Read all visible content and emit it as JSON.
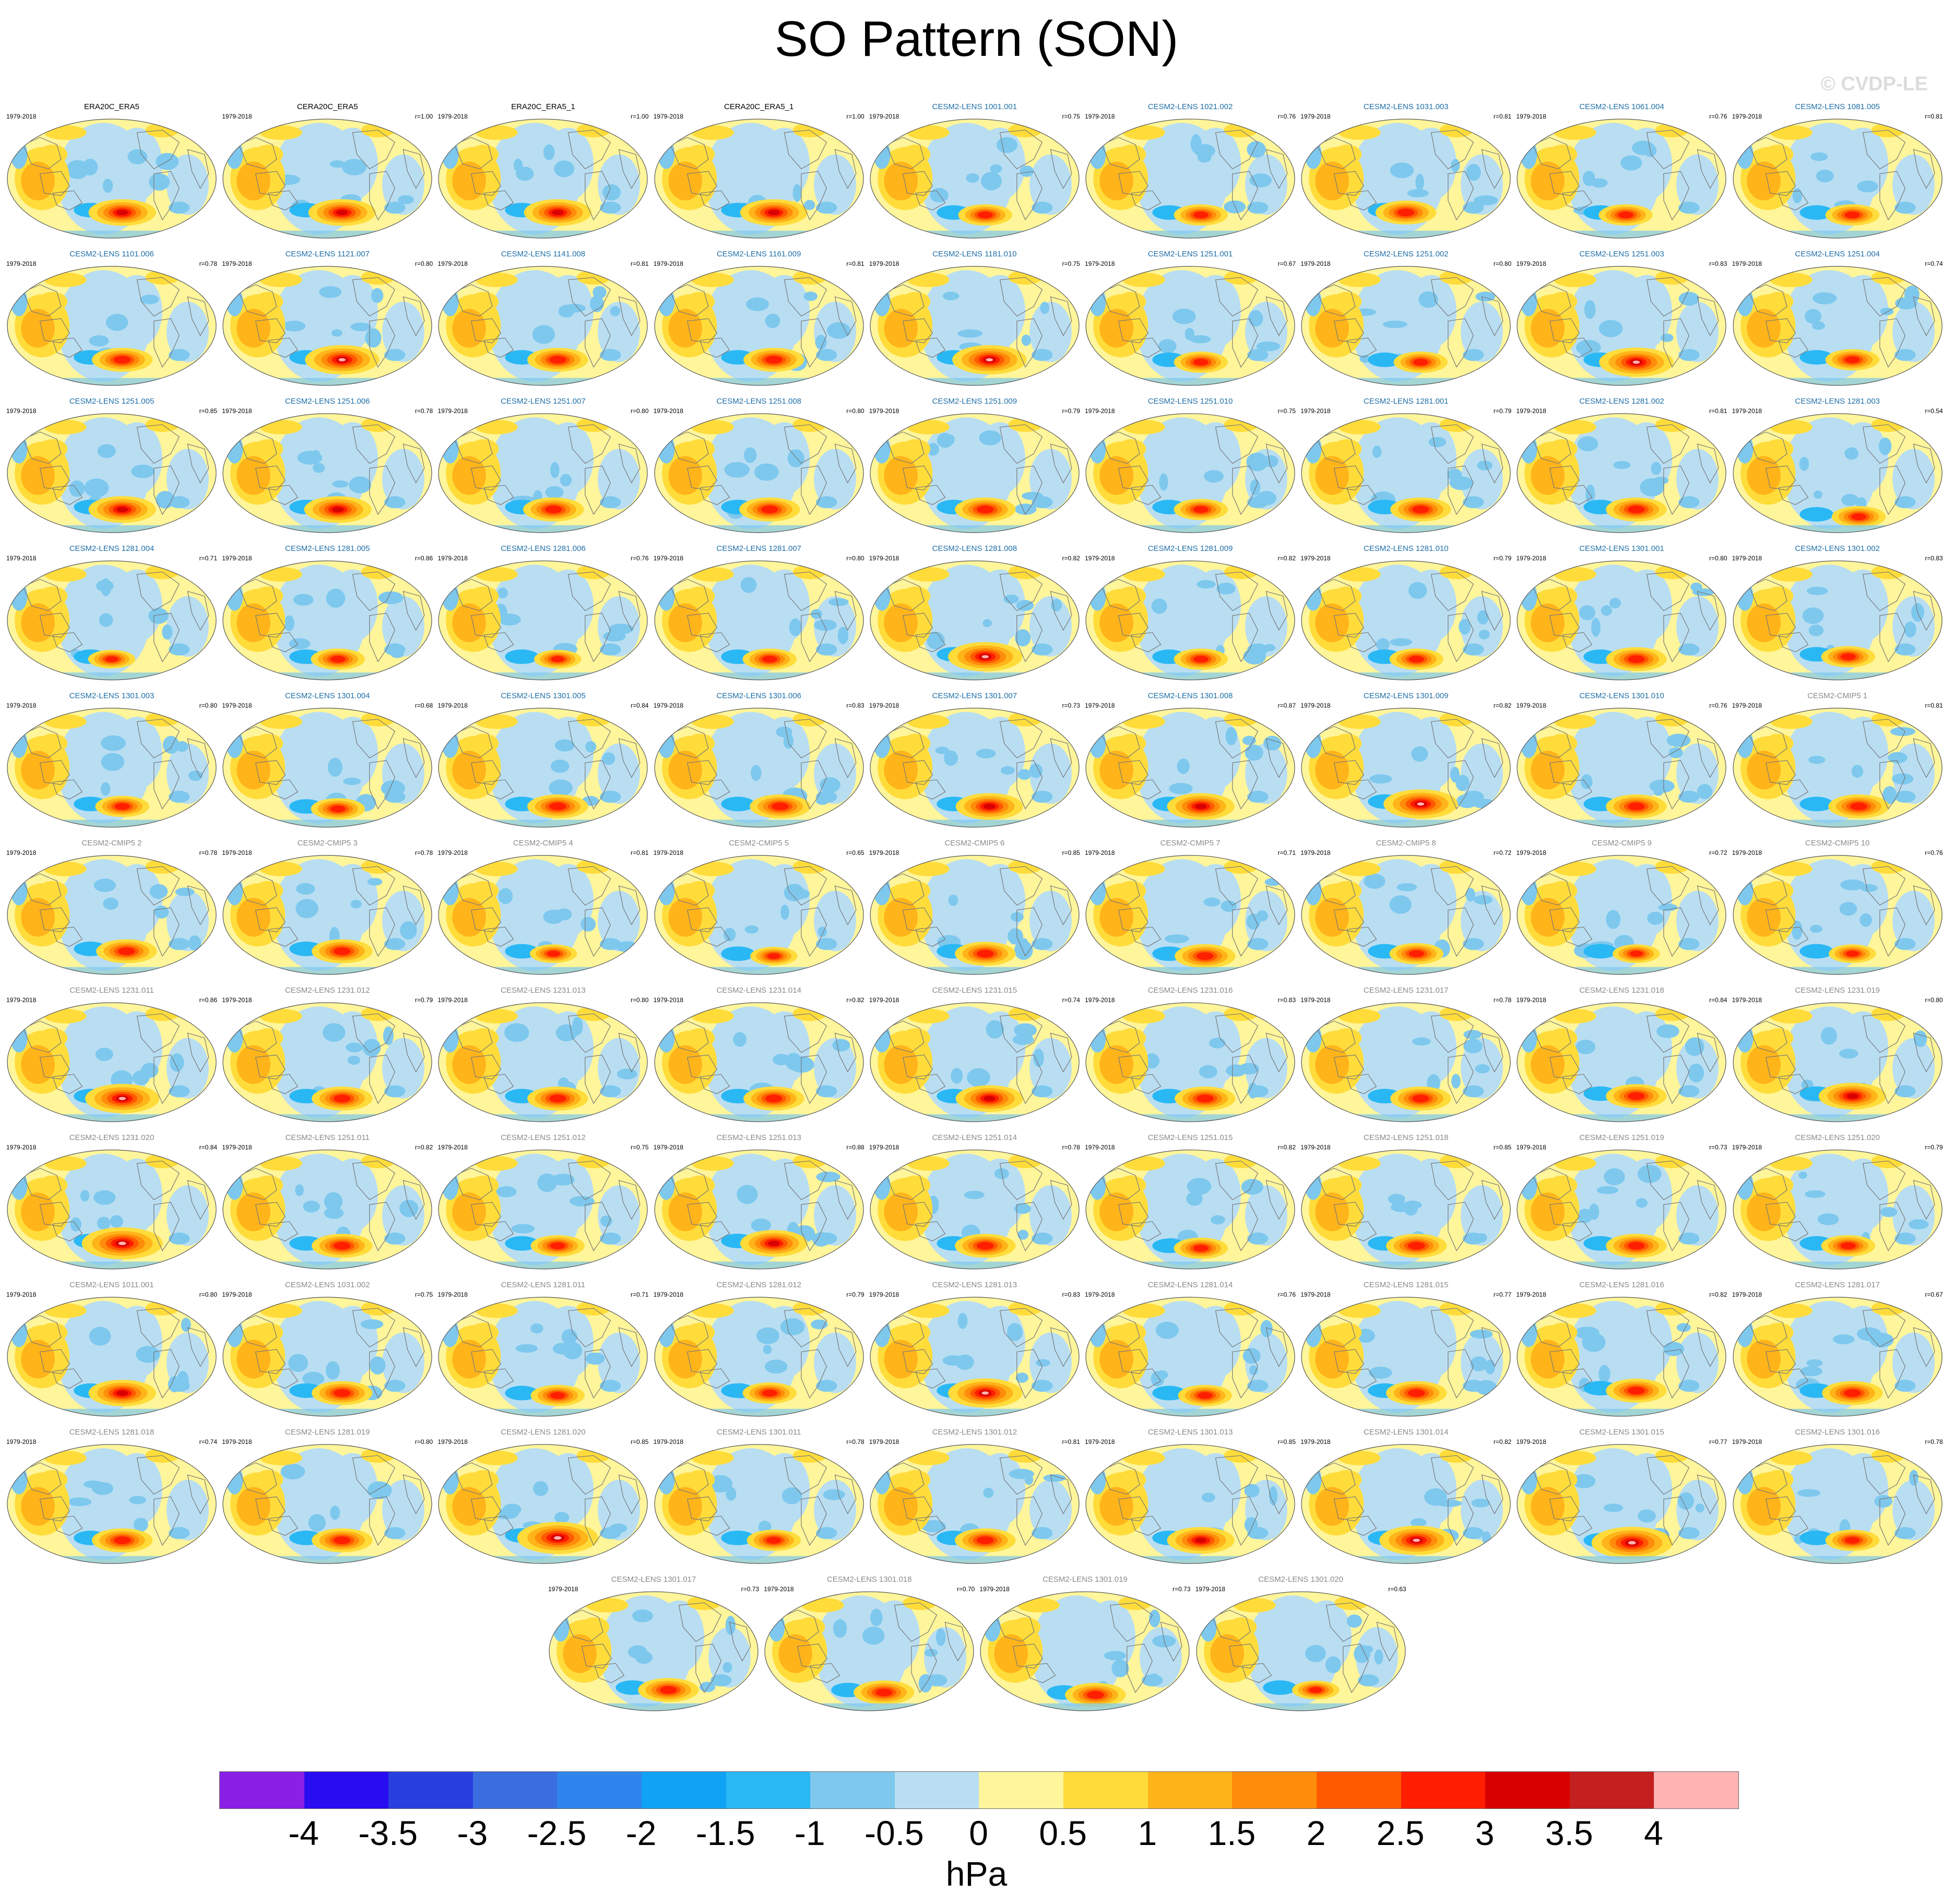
{
  "title": "SO Pattern (SON)",
  "watermark": "© CVDP-LE",
  "colorbar": {
    "units": "hPa",
    "ticks": [
      "-4",
      "-3.5",
      "-3",
      "-2.5",
      "-2",
      "-1.5",
      "-1",
      "-0.5",
      "0",
      "0.5",
      "1",
      "1.5",
      "2",
      "2.5",
      "3",
      "3.5",
      "4"
    ],
    "colors": [
      "#8a1fe6",
      "#2a0cf0",
      "#2a3fe0",
      "#3a6ee0",
      "#2f84ee",
      "#10a2f5",
      "#2ab8f5",
      "#7ec8ee",
      "#b9def2",
      "#fff59a",
      "#ffdc3a",
      "#ffb41a",
      "#ff8c0a",
      "#ff5a00",
      "#ff1e00",
      "#d80000",
      "#c42020",
      "#ffb4b4"
    ]
  },
  "panel_colors": {
    "obs": "#000000",
    "lens": "#1f6fa8",
    "grey": "#8a8a8a"
  },
  "panels": [
    {
      "title": "ERA20C_ERA5",
      "period": "1979-2018",
      "r": "",
      "style": "obs",
      "amp": 1.0,
      "fx": 0.55,
      "fy": 0.78
    },
    {
      "title": "CERA20C_ERA5",
      "period": "1979-2018",
      "r": "r=1.00",
      "style": "obs",
      "amp": 1.0,
      "fx": 0.57,
      "fy": 0.78
    },
    {
      "title": "ERA20C_ERA5_1",
      "period": "1979-2018",
      "r": "r=1.00",
      "style": "obs",
      "amp": 1.0,
      "fx": 0.57,
      "fy": 0.78
    },
    {
      "title": "CERA20C_ERA5_1",
      "period": "1979-2018",
      "r": "r=1.00",
      "style": "obs",
      "amp": 1.0,
      "fx": 0.57,
      "fy": 0.78
    },
    {
      "title": "CESM2-LENS 1001.001",
      "period": "1979-2018",
      "r": "r=0.75",
      "style": "lens",
      "amp": 0.8,
      "fx": 0.55,
      "fy": 0.8
    },
    {
      "title": "CESM2-LENS 1021.002",
      "period": "1979-2018",
      "r": "r=0.76",
      "style": "lens",
      "amp": 0.8,
      "fx": 0.55,
      "fy": 0.8
    },
    {
      "title": "CESM2-LENS 1031.003",
      "period": "1979-2018",
      "r": "r=0.81",
      "style": "lens",
      "amp": 0.9,
      "fx": 0.5,
      "fy": 0.78
    },
    {
      "title": "CESM2-LENS 1061.004",
      "period": "1979-2018",
      "r": "r=0.76",
      "style": "lens",
      "amp": 0.8,
      "fx": 0.52,
      "fy": 0.8
    },
    {
      "title": "CESM2-LENS 1081.005",
      "period": "1979-2018",
      "r": "r=0.81",
      "style": "lens",
      "amp": 0.8,
      "fx": 0.57,
      "fy": 0.8
    },
    {
      "title": "CESM2-LENS 1101.006",
      "period": "1979-2018",
      "r": "r=0.78",
      "style": "lens",
      "amp": 0.9,
      "fx": 0.55,
      "fy": 0.78
    },
    {
      "title": "CESM2-LENS 1121.007",
      "period": "1979-2018",
      "r": "r=0.80",
      "style": "lens",
      "amp": 1.1,
      "fx": 0.57,
      "fy": 0.78
    },
    {
      "title": "CESM2-LENS 1141.008",
      "period": "1979-2018",
      "r": "r=0.81",
      "style": "lens",
      "amp": 0.9,
      "fx": 0.57,
      "fy": 0.78
    },
    {
      "title": "CESM2-LENS 1161.009",
      "period": "1979-2018",
      "r": "r=0.81",
      "style": "lens",
      "amp": 0.9,
      "fx": 0.57,
      "fy": 0.78
    },
    {
      "title": "CESM2-LENS 1181.010",
      "period": "1979-2018",
      "r": "r=0.75",
      "style": "lens",
      "amp": 1.1,
      "fx": 0.57,
      "fy": 0.78
    },
    {
      "title": "CESM2-LENS 1251.001",
      "period": "1979-2018",
      "r": "r=0.67",
      "style": "lens",
      "amp": 0.8,
      "fx": 0.55,
      "fy": 0.8
    },
    {
      "title": "CESM2-LENS 1251.002",
      "period": "1979-2018",
      "r": "r=0.80",
      "style": "lens",
      "amp": 0.8,
      "fx": 0.57,
      "fy": 0.8
    },
    {
      "title": "CESM2-LENS 1251.003",
      "period": "1979-2018",
      "r": "r=0.83",
      "style": "lens",
      "amp": 1.1,
      "fx": 0.57,
      "fy": 0.8
    },
    {
      "title": "CESM2-LENS 1251.004",
      "period": "1979-2018",
      "r": "r=0.74",
      "style": "lens",
      "amp": 0.8,
      "fx": 0.57,
      "fy": 0.78
    },
    {
      "title": "CESM2-LENS 1251.005",
      "period": "1979-2018",
      "r": "r=0.85",
      "style": "lens",
      "amp": 1.0,
      "fx": 0.55,
      "fy": 0.8
    },
    {
      "title": "CESM2-LENS 1251.006",
      "period": "1979-2018",
      "r": "r=0.78",
      "style": "lens",
      "amp": 1.0,
      "fx": 0.55,
      "fy": 0.8
    },
    {
      "title": "CESM2-LENS 1251.007",
      "period": "1979-2018",
      "r": "r=0.80",
      "style": "lens",
      "amp": 0.9,
      "fx": 0.55,
      "fy": 0.8
    },
    {
      "title": "CESM2-LENS 1251.008",
      "period": "1979-2018",
      "r": "r=0.80",
      "style": "lens",
      "amp": 0.9,
      "fx": 0.55,
      "fy": 0.8
    },
    {
      "title": "CESM2-LENS 1251.009",
      "period": "1979-2018",
      "r": "r=0.79",
      "style": "lens",
      "amp": 0.9,
      "fx": 0.55,
      "fy": 0.8
    },
    {
      "title": "CESM2-LENS 1251.010",
      "period": "1979-2018",
      "r": "r=0.75",
      "style": "lens",
      "amp": 0.8,
      "fx": 0.55,
      "fy": 0.8
    },
    {
      "title": "CESM2-LENS 1281.001",
      "period": "1979-2018",
      "r": "r=0.79",
      "style": "lens",
      "amp": 0.9,
      "fx": 0.57,
      "fy": 0.8
    },
    {
      "title": "CESM2-LENS 1281.002",
      "period": "1979-2018",
      "r": "r=0.81",
      "style": "lens",
      "amp": 0.9,
      "fx": 0.57,
      "fy": 0.8
    },
    {
      "title": "CESM2-LENS 1281.003",
      "period": "1979-2018",
      "r": "r=0.54",
      "style": "lens",
      "amp": 0.8,
      "fx": 0.6,
      "fy": 0.86
    },
    {
      "title": "CESM2-LENS 1281.004",
      "period": "1979-2018",
      "r": "r=0.71",
      "style": "lens",
      "amp": 0.7,
      "fx": 0.5,
      "fy": 0.82
    },
    {
      "title": "CESM2-LENS 1281.005",
      "period": "1979-2018",
      "r": "r=0.86",
      "style": "lens",
      "amp": 0.8,
      "fx": 0.55,
      "fy": 0.82
    },
    {
      "title": "CESM2-LENS 1281.006",
      "period": "1979-2018",
      "r": "r=0.76",
      "style": "lens",
      "amp": 0.7,
      "fx": 0.57,
      "fy": 0.82
    },
    {
      "title": "CESM2-LENS 1281.007",
      "period": "1979-2018",
      "r": "r=0.80",
      "style": "lens",
      "amp": 0.8,
      "fx": 0.55,
      "fy": 0.82
    },
    {
      "title": "CESM2-LENS 1281.008",
      "period": "1979-2018",
      "r": "r=0.82",
      "style": "lens",
      "amp": 1.1,
      "fx": 0.55,
      "fy": 0.8
    },
    {
      "title": "CESM2-LENS 1281.009",
      "period": "1979-2018",
      "r": "r=0.82",
      "style": "lens",
      "amp": 0.8,
      "fx": 0.55,
      "fy": 0.82
    },
    {
      "title": "CESM2-LENS 1281.010",
      "period": "1979-2018",
      "r": "r=0.79",
      "style": "lens",
      "amp": 0.8,
      "fx": 0.55,
      "fy": 0.82
    },
    {
      "title": "CESM2-LENS 1301.001",
      "period": "1979-2018",
      "r": "r=0.80",
      "style": "lens",
      "amp": 0.9,
      "fx": 0.57,
      "fy": 0.82
    },
    {
      "title": "CESM2-LENS 1301.002",
      "period": "1979-2018",
      "r": "r=0.83",
      "style": "lens",
      "amp": 0.8,
      "fx": 0.55,
      "fy": 0.8
    },
    {
      "title": "CESM2-LENS 1301.003",
      "period": "1979-2018",
      "r": "r=0.80",
      "style": "lens",
      "amp": 0.8,
      "fx": 0.55,
      "fy": 0.82
    },
    {
      "title": "CESM2-LENS 1301.004",
      "period": "1979-2018",
      "r": "r=0.68",
      "style": "lens",
      "amp": 0.8,
      "fx": 0.55,
      "fy": 0.84
    },
    {
      "title": "CESM2-LENS 1301.005",
      "period": "1979-2018",
      "r": "r=0.84",
      "style": "lens",
      "amp": 0.9,
      "fx": 0.57,
      "fy": 0.82
    },
    {
      "title": "CESM2-LENS 1301.006",
      "period": "1979-2018",
      "r": "r=0.83",
      "style": "lens",
      "amp": 0.9,
      "fx": 0.6,
      "fy": 0.82
    },
    {
      "title": "CESM2-LENS 1301.007",
      "period": "1979-2018",
      "r": "r=0.73",
      "style": "lens",
      "amp": 1.0,
      "fx": 0.57,
      "fy": 0.82
    },
    {
      "title": "CESM2-LENS 1301.008",
      "period": "1979-2018",
      "r": "r=0.87",
      "style": "lens",
      "amp": 1.0,
      "fx": 0.55,
      "fy": 0.82
    },
    {
      "title": "CESM2-LENS 1301.009",
      "period": "1979-2018",
      "r": "r=0.82",
      "style": "lens",
      "amp": 1.1,
      "fx": 0.57,
      "fy": 0.8
    },
    {
      "title": "CESM2-LENS 1301.010",
      "period": "1979-2018",
      "r": "r=0.76",
      "style": "lens",
      "amp": 0.9,
      "fx": 0.57,
      "fy": 0.82
    },
    {
      "title": "CESM2-CMIP5 1",
      "period": "1979-2018",
      "r": "r=0.81",
      "style": "grey",
      "amp": 0.9,
      "fx": 0.6,
      "fy": 0.82
    },
    {
      "title": "CESM2-CMIP5 2",
      "period": "1979-2018",
      "r": "r=0.78",
      "style": "grey",
      "amp": 0.9,
      "fx": 0.57,
      "fy": 0.8
    },
    {
      "title": "CESM2-CMIP5 3",
      "period": "1979-2018",
      "r": "r=0.78",
      "style": "grey",
      "amp": 0.9,
      "fx": 0.57,
      "fy": 0.8
    },
    {
      "title": "CESM2-CMIP5 4",
      "period": "1979-2018",
      "r": "r=0.81",
      "style": "grey",
      "amp": 0.7,
      "fx": 0.55,
      "fy": 0.82
    },
    {
      "title": "CESM2-CMIP5 5",
      "period": "1979-2018",
      "r": "r=0.65",
      "style": "grey",
      "amp": 0.7,
      "fx": 0.57,
      "fy": 0.84
    },
    {
      "title": "CESM2-CMIP5 6",
      "period": "1979-2018",
      "r": "r=0.85",
      "style": "grey",
      "amp": 0.9,
      "fx": 0.55,
      "fy": 0.82
    },
    {
      "title": "CESM2-CMIP5 7",
      "period": "1979-2018",
      "r": "r=0.71",
      "style": "grey",
      "amp": 0.9,
      "fx": 0.57,
      "fy": 0.84
    },
    {
      "title": "CESM2-CMIP5 8",
      "period": "1979-2018",
      "r": "r=0.72",
      "style": "grey",
      "amp": 0.8,
      "fx": 0.55,
      "fy": 0.82
    },
    {
      "title": "CESM2-CMIP5 9",
      "period": "1979-2018",
      "r": "r=0.72",
      "style": "grey",
      "amp": 0.7,
      "fx": 0.57,
      "fy": 0.82
    },
    {
      "title": "CESM2-CMIP5 10",
      "period": "1979-2018",
      "r": "r=0.76",
      "style": "grey",
      "amp": 0.7,
      "fx": 0.57,
      "fy": 0.82
    },
    {
      "title": "CESM2-LENS 1231.011",
      "period": "1979-2018",
      "r": "r=0.86",
      "style": "grey",
      "amp": 1.1,
      "fx": 0.55,
      "fy": 0.8
    },
    {
      "title": "CESM2-LENS 1231.012",
      "period": "1979-2018",
      "r": "r=0.79",
      "style": "grey",
      "amp": 0.9,
      "fx": 0.57,
      "fy": 0.8
    },
    {
      "title": "CESM2-LENS 1231.013",
      "period": "1979-2018",
      "r": "r=0.80",
      "style": "grey",
      "amp": 0.9,
      "fx": 0.57,
      "fy": 0.8
    },
    {
      "title": "CESM2-LENS 1231.014",
      "period": "1979-2018",
      "r": "r=0.82",
      "style": "grey",
      "amp": 0.9,
      "fx": 0.57,
      "fy": 0.8
    },
    {
      "title": "CESM2-LENS 1231.015",
      "period": "1979-2018",
      "r": "r=0.74",
      "style": "grey",
      "amp": 1.0,
      "fx": 0.57,
      "fy": 0.8
    },
    {
      "title": "CESM2-LENS 1231.016",
      "period": "1979-2018",
      "r": "r=0.83",
      "style": "grey",
      "amp": 0.9,
      "fx": 0.57,
      "fy": 0.8
    },
    {
      "title": "CESM2-LENS 1231.017",
      "period": "1979-2018",
      "r": "r=0.78",
      "style": "grey",
      "amp": 0.9,
      "fx": 0.57,
      "fy": 0.8
    },
    {
      "title": "CESM2-LENS 1231.018",
      "period": "1979-2018",
      "r": "r=0.84",
      "style": "grey",
      "amp": 0.9,
      "fx": 0.57,
      "fy": 0.78
    },
    {
      "title": "CESM2-LENS 1231.019",
      "period": "1979-2018",
      "r": "r=0.80",
      "style": "grey",
      "amp": 1.0,
      "fx": 0.57,
      "fy": 0.78
    },
    {
      "title": "CESM2-LENS 1231.020",
      "period": "1979-2018",
      "r": "r=0.84",
      "style": "grey",
      "amp": 1.2,
      "fx": 0.55,
      "fy": 0.78
    },
    {
      "title": "CESM2-LENS 1251.011",
      "period": "1979-2018",
      "r": "r=0.82",
      "style": "grey",
      "amp": 0.9,
      "fx": 0.57,
      "fy": 0.8
    },
    {
      "title": "CESM2-LENS 1251.012",
      "period": "1979-2018",
      "r": "r=0.75",
      "style": "grey",
      "amp": 0.8,
      "fx": 0.57,
      "fy": 0.8
    },
    {
      "title": "CESM2-LENS 1251.013",
      "period": "1979-2018",
      "r": "r=0.88",
      "style": "grey",
      "amp": 1.0,
      "fx": 0.57,
      "fy": 0.78
    },
    {
      "title": "CESM2-LENS 1251.014",
      "period": "1979-2018",
      "r": "r=0.78",
      "style": "grey",
      "amp": 0.9,
      "fx": 0.55,
      "fy": 0.8
    },
    {
      "title": "CESM2-LENS 1251.015",
      "period": "1979-2018",
      "r": "r=0.82",
      "style": "grey",
      "amp": 0.8,
      "fx": 0.55,
      "fy": 0.82
    },
    {
      "title": "CESM2-LENS 1251.018",
      "period": "1979-2018",
      "r": "r=0.85",
      "style": "grey",
      "amp": 0.9,
      "fx": 0.55,
      "fy": 0.8
    },
    {
      "title": "CESM2-LENS 1251.019",
      "period": "1979-2018",
      "r": "r=0.73",
      "style": "grey",
      "amp": 0.9,
      "fx": 0.57,
      "fy": 0.8
    },
    {
      "title": "CESM2-LENS 1251.020",
      "period": "1979-2018",
      "r": "r=0.79",
      "style": "grey",
      "amp": 0.8,
      "fx": 0.55,
      "fy": 0.8
    },
    {
      "title": "CESM2-LENS 1011.001",
      "period": "1979-2018",
      "r": "r=0.80",
      "style": "grey",
      "amp": 1.0,
      "fx": 0.55,
      "fy": 0.8
    },
    {
      "title": "CESM2-LENS 1031.002",
      "period": "1979-2018",
      "r": "r=0.75",
      "style": "grey",
      "amp": 0.9,
      "fx": 0.57,
      "fy": 0.8
    },
    {
      "title": "CESM2-LENS 1281.011",
      "period": "1979-2018",
      "r": "r=0.71",
      "style": "grey",
      "amp": 0.8,
      "fx": 0.57,
      "fy": 0.82
    },
    {
      "title": "CESM2-LENS 1281.012",
      "period": "1979-2018",
      "r": "r=0.79",
      "style": "grey",
      "amp": 0.8,
      "fx": 0.55,
      "fy": 0.8
    },
    {
      "title": "CESM2-LENS 1281.013",
      "period": "1979-2018",
      "r": "r=0.83",
      "style": "grey",
      "amp": 1.1,
      "fx": 0.55,
      "fy": 0.8
    },
    {
      "title": "CESM2-LENS 1281.014",
      "period": "1979-2018",
      "r": "r=0.76",
      "style": "grey",
      "amp": 0.8,
      "fx": 0.57,
      "fy": 0.82
    },
    {
      "title": "CESM2-LENS 1281.015",
      "period": "1979-2018",
      "r": "r=0.77",
      "style": "grey",
      "amp": 0.9,
      "fx": 0.55,
      "fy": 0.8
    },
    {
      "title": "CESM2-LENS 1281.016",
      "period": "1979-2018",
      "r": "r=0.82",
      "style": "grey",
      "amp": 0.9,
      "fx": 0.57,
      "fy": 0.78
    },
    {
      "title": "CESM2-LENS 1281.017",
      "period": "1979-2018",
      "r": "r=0.67",
      "style": "grey",
      "amp": 0.9,
      "fx": 0.57,
      "fy": 0.8
    },
    {
      "title": "CESM2-LENS 1281.018",
      "period": "1979-2018",
      "r": "r=0.74",
      "style": "grey",
      "amp": 0.9,
      "fx": 0.55,
      "fy": 0.8
    },
    {
      "title": "CESM2-LENS 1281.019",
      "period": "1979-2018",
      "r": "r=0.80",
      "style": "grey",
      "amp": 0.9,
      "fx": 0.57,
      "fy": 0.8
    },
    {
      "title": "CESM2-LENS 1281.020",
      "period": "1979-2018",
      "r": "r=0.85",
      "style": "grey",
      "amp": 1.2,
      "fx": 0.57,
      "fy": 0.78
    },
    {
      "title": "CESM2-LENS 1301.011",
      "period": "1979-2018",
      "r": "r=0.78",
      "style": "grey",
      "amp": 0.8,
      "fx": 0.57,
      "fy": 0.8
    },
    {
      "title": "CESM2-LENS 1301.012",
      "period": "1979-2018",
      "r": "r=0.81",
      "style": "grey",
      "amp": 0.9,
      "fx": 0.55,
      "fy": 0.8
    },
    {
      "title": "CESM2-LENS 1301.013",
      "period": "1979-2018",
      "r": "r=0.85",
      "style": "grey",
      "amp": 1.0,
      "fx": 0.55,
      "fy": 0.8
    },
    {
      "title": "CESM2-LENS 1301.014",
      "period": "1979-2018",
      "r": "r=0.82",
      "style": "grey",
      "amp": 1.1,
      "fx": 0.55,
      "fy": 0.8
    },
    {
      "title": "CESM2-LENS 1301.015",
      "period": "1979-2018",
      "r": "r=0.77",
      "style": "grey",
      "amp": 1.2,
      "fx": 0.55,
      "fy": 0.82
    },
    {
      "title": "CESM2-LENS 1301.016",
      "period": "1979-2018",
      "r": "r=0.78",
      "style": "grey",
      "amp": 0.8,
      "fx": 0.57,
      "fy": 0.8
    },
    {
      "title": "CESM2-LENS 1301.017",
      "period": "1979-2018",
      "r": "r=0.73",
      "style": "grey",
      "amp": 0.9,
      "fx": 0.57,
      "fy": 0.82
    },
    {
      "title": "CESM2-LENS 1301.018",
      "period": "1979-2018",
      "r": "r=0.70",
      "style": "grey",
      "amp": 0.9,
      "fx": 0.57,
      "fy": 0.84
    },
    {
      "title": "CESM2-LENS 1301.019",
      "period": "1979-2018",
      "r": "r=0.73",
      "style": "grey",
      "amp": 0.9,
      "fx": 0.55,
      "fy": 0.86
    },
    {
      "title": "CESM2-LENS 1301.020",
      "period": "1979-2018",
      "r": "r=0.63",
      "style": "grey",
      "amp": 0.7,
      "fx": 0.57,
      "fy": 0.82
    }
  ]
}
